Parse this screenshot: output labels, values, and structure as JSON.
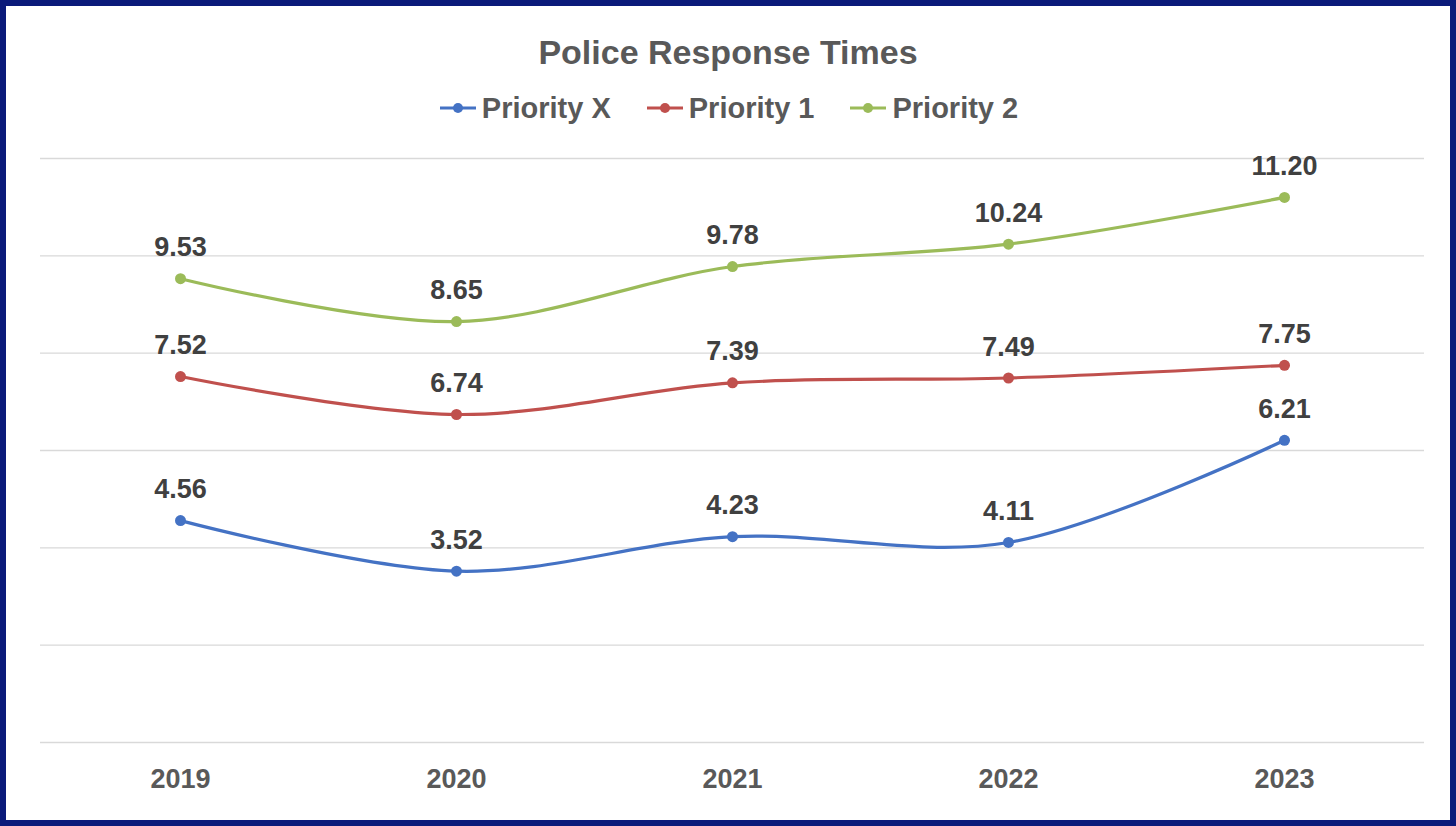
{
  "chart_data": {
    "type": "line",
    "title": "Police Response Times",
    "categories": [
      "2019",
      "2020",
      "2021",
      "2022",
      "2023"
    ],
    "series": [
      {
        "name": "Priority X",
        "color": "#4472c4",
        "values": [
          4.56,
          3.52,
          4.23,
          4.11,
          6.21
        ]
      },
      {
        "name": "Priority 1",
        "color": "#c0504d",
        "values": [
          7.52,
          6.74,
          7.39,
          7.49,
          7.75
        ]
      },
      {
        "name": "Priority 2",
        "color": "#9bbb59",
        "values": [
          9.53,
          8.65,
          9.78,
          10.24,
          11.2
        ],
        "value_labels": [
          "9.53",
          "8.65",
          "9.78",
          "10.24",
          "11.20"
        ]
      }
    ],
    "ylim": [
      0,
      12
    ],
    "yticks": [
      0,
      2,
      4,
      6,
      8,
      10,
      12
    ],
    "grid": true,
    "legend": "top",
    "data_labels": true,
    "tick_labels": "x",
    "marker": "circle"
  }
}
